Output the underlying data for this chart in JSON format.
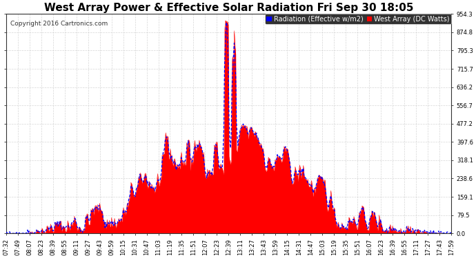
{
  "title": "West Array Power & Effective Solar Radiation Fri Sep 30 18:05",
  "copyright": "Copyright 2016 Cartronics.com",
  "legend_radiation": "Radiation (Effective w/m2)",
  "legend_west": "West Array (DC Watts)",
  "ylim": [
    0.0,
    954.3
  ],
  "yticks": [
    0.0,
    79.5,
    159.1,
    238.6,
    318.1,
    397.6,
    477.2,
    556.7,
    636.2,
    715.7,
    795.3,
    874.8,
    954.3
  ],
  "xtick_labels": [
    "07:32",
    "07:49",
    "08:07",
    "08:23",
    "08:39",
    "08:55",
    "09:11",
    "09:27",
    "09:43",
    "09:59",
    "10:15",
    "10:31",
    "10:47",
    "11:03",
    "11:19",
    "11:35",
    "11:51",
    "12:07",
    "12:23",
    "12:39",
    "13:11",
    "13:27",
    "13:43",
    "13:59",
    "14:15",
    "14:31",
    "14:47",
    "15:03",
    "15:19",
    "15:35",
    "15:51",
    "16:07",
    "16:23",
    "16:39",
    "16:55",
    "17:11",
    "17:27",
    "17:43",
    "17:59"
  ],
  "radiation_color": "#0000ff",
  "west_color": "#ff0000",
  "background_color": "#ffffff",
  "plot_bg_color": "#ffffff",
  "title_fontsize": 11,
  "copyright_fontsize": 6.5,
  "legend_fontsize": 7,
  "tick_fontsize": 6,
  "grid_color": "#cccccc",
  "ytick_label_color": "#000000",
  "xtick_label_color": "#000000"
}
